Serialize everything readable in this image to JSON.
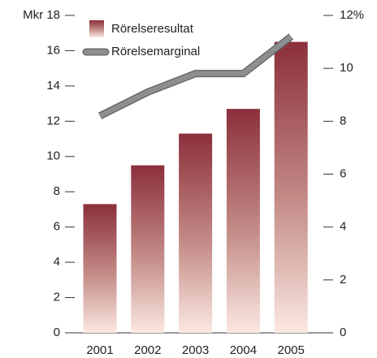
{
  "chart_data": {
    "type": "bar-line",
    "categories": [
      "2001",
      "2002",
      "2003",
      "2004",
      "2005"
    ],
    "series": [
      {
        "name": "Rörelseresultat",
        "type": "bar",
        "color": "#8b2f3c",
        "values": [
          7.3,
          9.5,
          11.3,
          12.7,
          16.5
        ]
      },
      {
        "name": "Rörelsemarginal",
        "type": "line",
        "axis": "y2",
        "color": "#8c8e90",
        "values": [
          8.2,
          9.1,
          9.8,
          9.8,
          11.2
        ]
      }
    ],
    "ylim": [
      0,
      18
    ],
    "yticks": [
      0,
      2,
      4,
      6,
      8,
      10,
      12,
      14,
      16,
      {
        "value": 18,
        "label": "Mkr 18"
      }
    ],
    "y2lim": [
      0,
      12
    ],
    "y2ticks": [
      0,
      2,
      4,
      6,
      8,
      10,
      {
        "value": 12,
        "label": "12%"
      }
    ],
    "legend": "top-left"
  }
}
